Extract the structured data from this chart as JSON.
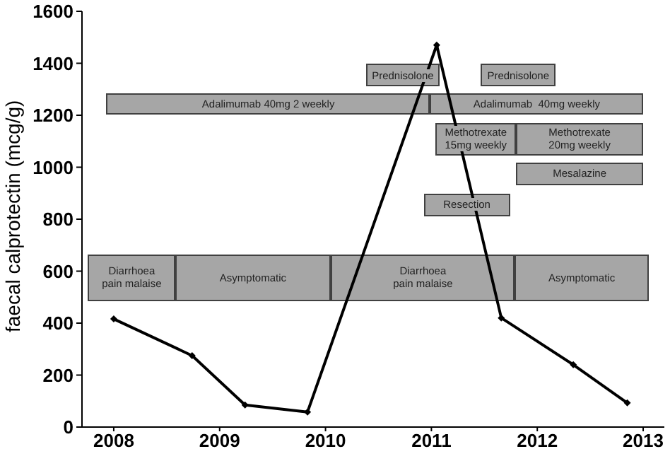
{
  "chart_data": {
    "type": "line",
    "ylabel": "faecal calprotectin (mcg/g)",
    "x": [
      2008.0,
      2008.74,
      2009.24,
      2009.83,
      2011.05,
      2011.66,
      2012.34,
      2012.85
    ],
    "series": [
      {
        "color": "#000000",
        "values": [
          416,
          275,
          85,
          58,
          1470,
          420,
          240,
          93
        ]
      }
    ],
    "xlim": [
      2007.7,
      2013.2
    ],
    "xticks": [
      2008,
      2009,
      2010,
      2011,
      2012,
      2013
    ],
    "ylim": [
      0,
      1600
    ],
    "yticks": [
      0,
      200,
      400,
      600,
      800,
      1000,
      1200,
      1400,
      1600
    ],
    "grid": false,
    "legend": false,
    "marker": "diamond",
    "line_style": "solid",
    "annotations": [
      "Prednisolone",
      "Prednisolone",
      "Adalimumab 40mg 2 weekly",
      "Adalimumab  40mg weekly",
      "Methotrexate 15mg weekly",
      "Methotrexate 20mg weekly",
      "Mesalazine",
      "Resection",
      "Diarrhoea pain malaise",
      "Asymptomatic",
      "Diarrhoea pain malaise",
      "Asymptomatic"
    ]
  }
}
